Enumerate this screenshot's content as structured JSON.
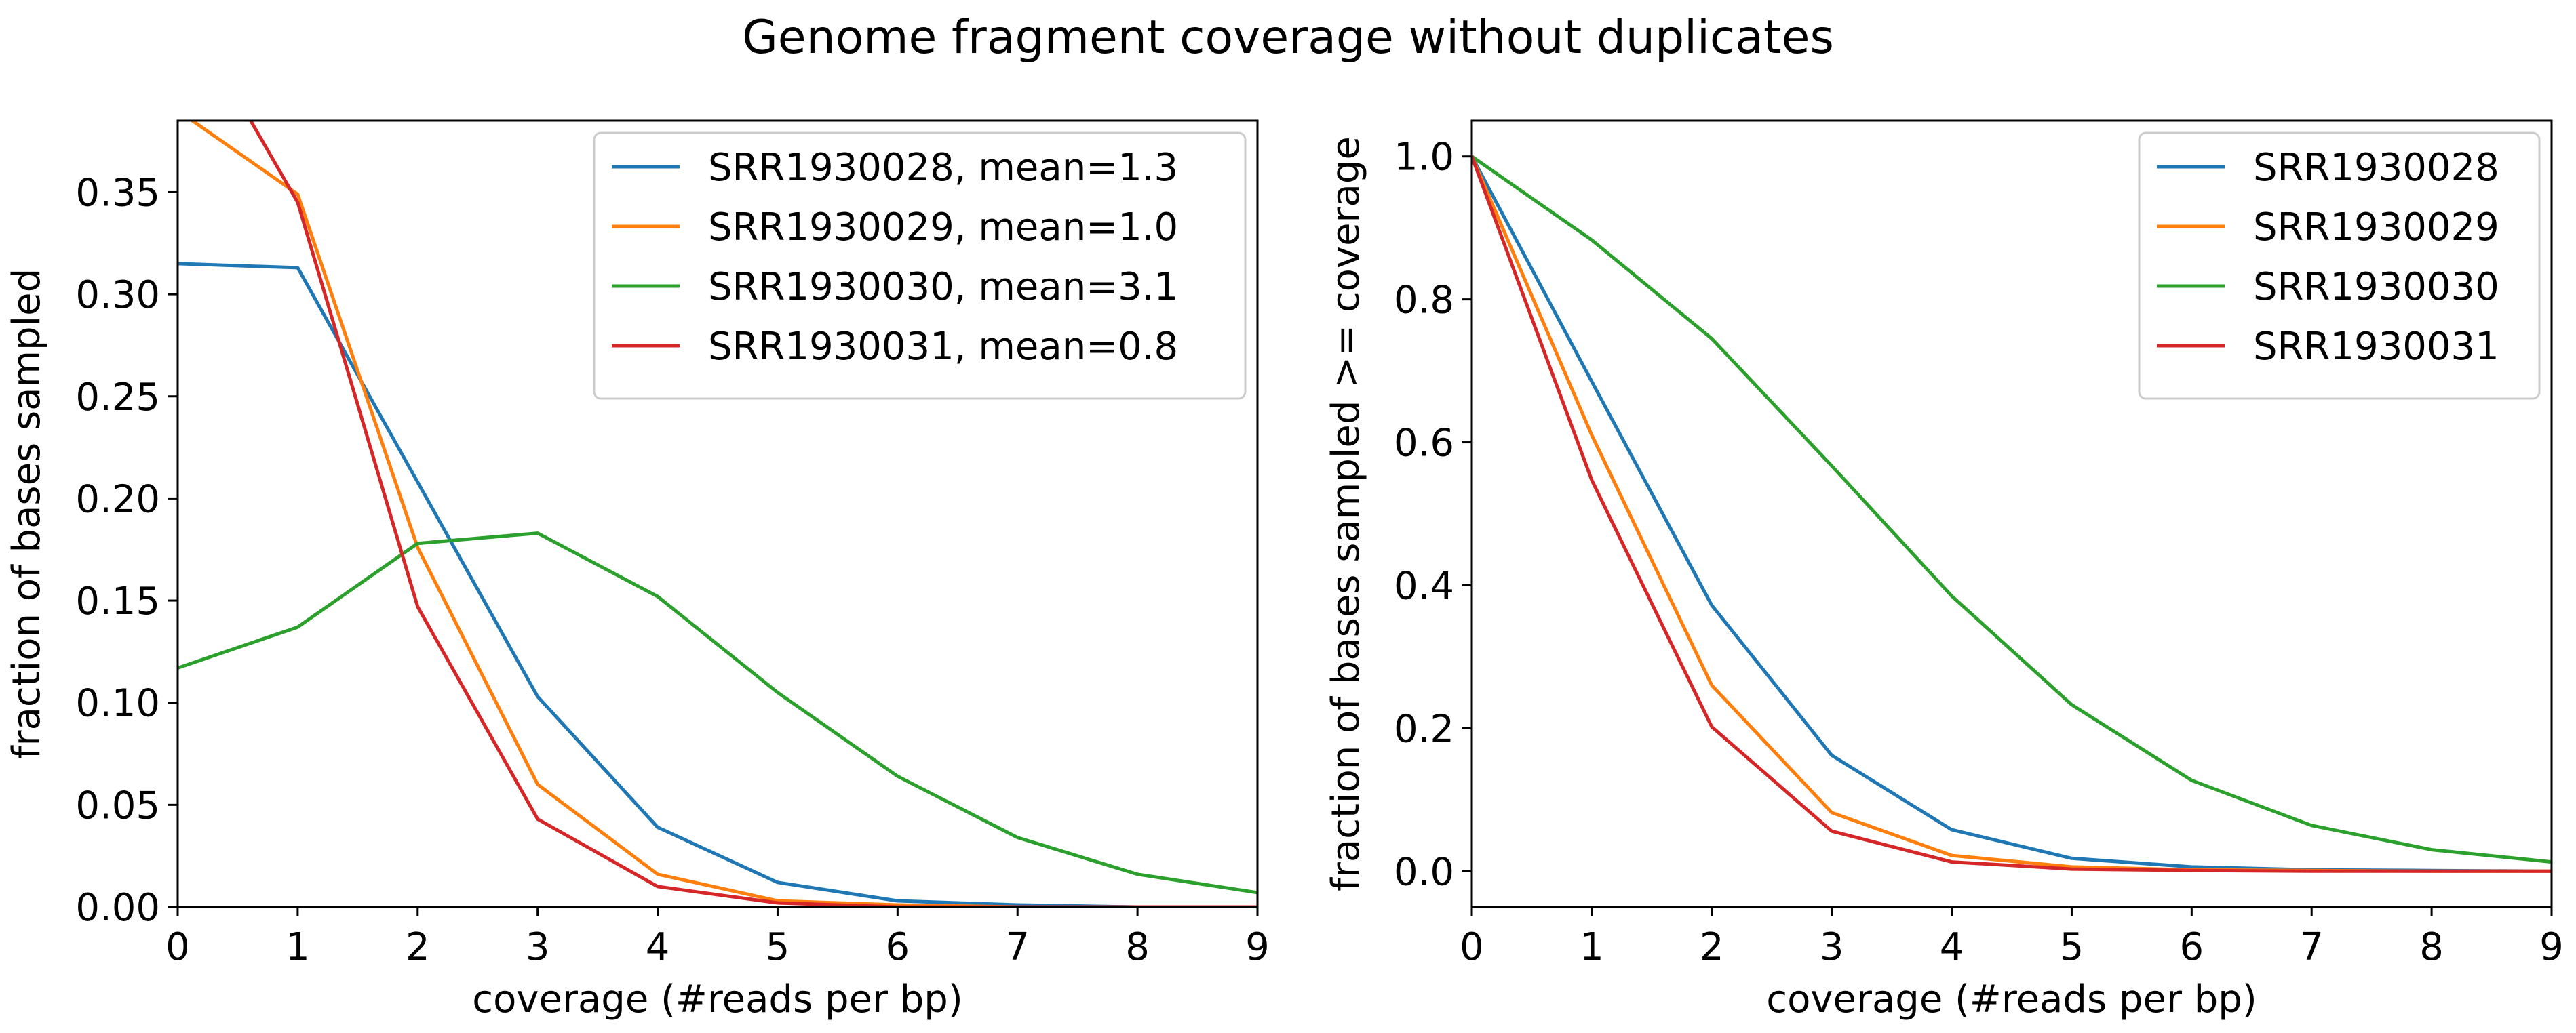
{
  "figure": {
    "suptitle": "Genome fragment coverage without duplicates"
  },
  "chart_data": [
    {
      "type": "line",
      "xlabel": "coverage (#reads per bp)",
      "ylabel": "fraction of bases sampled",
      "xlim": [
        0,
        9
      ],
      "ylim": [
        0,
        0.385
      ],
      "xticks": [
        "0",
        "1",
        "2",
        "3",
        "4",
        "5",
        "6",
        "7",
        "8",
        "9"
      ],
      "yticks": [
        "0.00",
        "0.05",
        "0.10",
        "0.15",
        "0.20",
        "0.25",
        "0.30",
        "0.35"
      ],
      "ytick_values": [
        0,
        0.05,
        0.1,
        0.15,
        0.2,
        0.25,
        0.3,
        0.35
      ],
      "legend_position": "upper right",
      "grid": false,
      "x": [
        0,
        1,
        2,
        3,
        4,
        5,
        6,
        7,
        8,
        9
      ],
      "series": [
        {
          "name": "SRR1930028, mean=1.3",
          "color": "#1f77b4",
          "values": [
            0.315,
            0.313,
            0.208,
            0.103,
            0.039,
            0.012,
            0.003,
            0.001,
            0.0,
            0.0
          ]
        },
        {
          "name": "SRR1930029, mean=1.0",
          "color": "#ff7f0e",
          "values": [
            0.39,
            0.349,
            0.176,
            0.06,
            0.016,
            0.003,
            0.001,
            0.0,
            0.0,
            0.0
          ]
        },
        {
          "name": "SRR1930030, mean=3.1",
          "color": "#2ca02c",
          "values": [
            0.117,
            0.137,
            0.178,
            0.183,
            0.152,
            0.105,
            0.064,
            0.034,
            0.016,
            0.007
          ]
        },
        {
          "name": "SRR1930031, mean=0.8",
          "color": "#d62728",
          "values": [
            0.447,
            0.345,
            0.147,
            0.043,
            0.01,
            0.002,
            0.0,
            0.0,
            0.0,
            0.0
          ]
        }
      ]
    },
    {
      "type": "line",
      "xlabel": "coverage (#reads per bp)",
      "ylabel": "fraction of bases sampled >= coverage",
      "xlim": [
        0,
        9
      ],
      "ylim": [
        -0.05,
        1.05
      ],
      "xticks": [
        "0",
        "1",
        "2",
        "3",
        "4",
        "5",
        "6",
        "7",
        "8",
        "9"
      ],
      "yticks": [
        "0.0",
        "0.2",
        "0.4",
        "0.6",
        "0.8",
        "1.0"
      ],
      "ytick_values": [
        0,
        0.2,
        0.4,
        0.6,
        0.8,
        1.0
      ],
      "legend_position": "upper right",
      "grid": false,
      "x": [
        0,
        1,
        2,
        3,
        4,
        5,
        6,
        7,
        8,
        9
      ],
      "series": [
        {
          "name": "SRR1930028",
          "color": "#1f77b4",
          "values": [
            1.0,
            0.685,
            0.372,
            0.162,
            0.058,
            0.018,
            0.006,
            0.002,
            0.001,
            0.0
          ]
        },
        {
          "name": "SRR1930029",
          "color": "#ff7f0e",
          "values": [
            1.0,
            0.61,
            0.26,
            0.082,
            0.022,
            0.006,
            0.002,
            0.001,
            0.0,
            0.0
          ]
        },
        {
          "name": "SRR1930030",
          "color": "#2ca02c",
          "values": [
            1.0,
            0.883,
            0.745,
            0.567,
            0.385,
            0.233,
            0.127,
            0.064,
            0.03,
            0.013
          ]
        },
        {
          "name": "SRR1930031",
          "color": "#d62728",
          "values": [
            1.0,
            0.547,
            0.202,
            0.056,
            0.013,
            0.003,
            0.001,
            0.0,
            0.0,
            0.0
          ]
        }
      ]
    }
  ]
}
